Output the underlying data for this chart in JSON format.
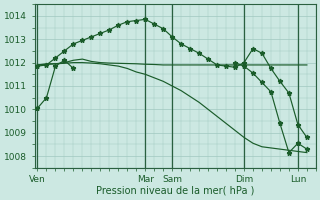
{
  "bg_color": "#cce8e2",
  "grid_color": "#a0c8c0",
  "line_color": "#1a5c2a",
  "xlabel": "Pression niveau de la mer( hPa )",
  "day_labels": [
    "Ven",
    "Mar",
    "Sam",
    "Dim",
    "Lun"
  ],
  "day_positions": [
    0,
    12,
    15,
    23,
    29
  ],
  "ylabel_ticks": [
    1008,
    1009,
    1010,
    1011,
    1012,
    1013,
    1014
  ],
  "series1_x": [
    0,
    1,
    2,
    3,
    4
  ],
  "series1_y": [
    1010.05,
    1010.5,
    1011.85,
    1012.1,
    1011.75
  ],
  "series2_x": [
    0,
    1,
    2,
    3,
    4,
    5,
    6,
    7,
    8,
    9,
    10,
    11,
    12,
    13,
    14,
    15,
    16,
    17,
    18,
    19,
    20,
    21,
    22,
    23,
    24,
    25,
    26,
    27,
    28,
    29,
    30
  ],
  "series2_y": [
    1011.9,
    1011.95,
    1011.95,
    1012.0,
    1012.1,
    1012.15,
    1012.05,
    1012.0,
    1011.98,
    1011.97,
    1011.96,
    1011.95,
    1011.93,
    1011.92,
    1011.9,
    1011.9,
    1011.9,
    1011.9,
    1011.9,
    1011.9,
    1011.9,
    1011.9,
    1011.9,
    1011.9,
    1011.9,
    1011.9,
    1011.9,
    1011.9,
    1011.9,
    1011.9,
    1011.9
  ],
  "series3_x": [
    0,
    1,
    2,
    3,
    4,
    5,
    6,
    7,
    8,
    9,
    10,
    11,
    12,
    13,
    14,
    15,
    16,
    17,
    18,
    19,
    20,
    21,
    22,
    23,
    24,
    25,
    26,
    27,
    28,
    29,
    30
  ],
  "series3_y": [
    1011.9,
    1011.92,
    1011.95,
    1011.97,
    1012.0,
    1012.0,
    1011.98,
    1011.95,
    1011.9,
    1011.85,
    1011.75,
    1011.6,
    1011.5,
    1011.35,
    1011.2,
    1011.0,
    1010.8,
    1010.55,
    1010.3,
    1010.0,
    1009.7,
    1009.4,
    1009.1,
    1008.8,
    1008.55,
    1008.4,
    1008.35,
    1008.3,
    1008.25,
    1008.2,
    1008.15
  ],
  "series4_x": [
    0,
    1,
    2,
    3,
    4,
    5,
    6,
    7,
    8,
    9,
    10,
    11,
    12,
    13,
    14,
    15,
    16,
    17,
    18,
    19,
    20,
    21,
    22,
    23,
    24,
    25,
    26,
    27,
    28,
    29,
    30
  ],
  "series4_y": [
    1011.85,
    1011.9,
    1012.2,
    1012.5,
    1012.8,
    1012.95,
    1013.1,
    1013.25,
    1013.4,
    1013.6,
    1013.75,
    1013.8,
    1013.85,
    1013.65,
    1013.45,
    1013.1,
    1012.8,
    1012.6,
    1012.4,
    1012.15,
    1011.9,
    1011.85,
    1011.8,
    1012.0,
    1012.6,
    1012.4,
    1011.75,
    1011.2,
    1010.7,
    1009.35,
    1008.8
  ],
  "series5_x": [
    22,
    23,
    24,
    25,
    26,
    27,
    28,
    29,
    30
  ],
  "series5_y": [
    1012.0,
    1011.85,
    1011.55,
    1011.15,
    1010.75,
    1009.4,
    1008.15,
    1008.55,
    1008.3
  ],
  "xlim": [
    -0.3,
    31
  ],
  "ylim": [
    1007.5,
    1014.5
  ]
}
